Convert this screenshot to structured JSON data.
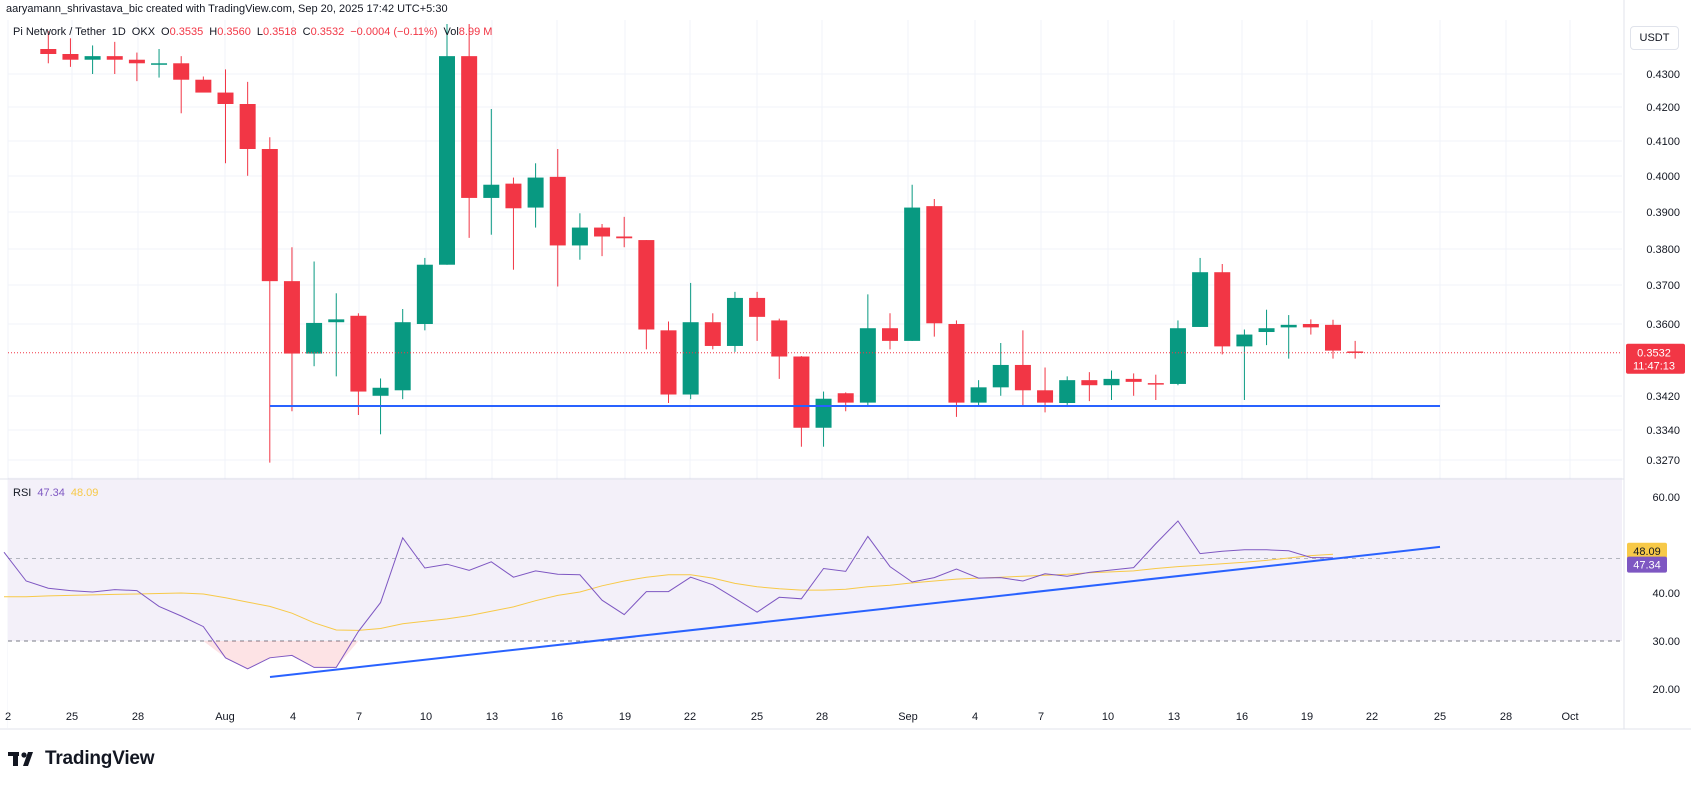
{
  "header": {
    "credit": "aaryamann_shrivastava_bic created with TradingView.com, Sep 20, 2025 17:42 UTC+5:30",
    "symbol": "Pi Network / Tether",
    "interval": "1D",
    "exchange": "OKX",
    "o_label": "O",
    "o": "0.3535",
    "h_label": "H",
    "h": "0.3560",
    "l_label": "L",
    "l": "0.3518",
    "c_label": "C",
    "c": "0.3532",
    "change": "−0.0004 (−0.11%)",
    "vol_label": "Vol",
    "vol": "8.99 M",
    "currency": "USDT"
  },
  "rsi_legend": {
    "name": "RSI",
    "rsi": "47.34",
    "ma": "48.09"
  },
  "brand": {
    "logo_text": "TradingView"
  },
  "colors": {
    "up": "#089981",
    "down": "#f23645",
    "rsi": "#7e57c2",
    "rsi_ma": "#f7c948",
    "trendline": "#2962ff",
    "price_line": "#f23645"
  },
  "chart_data": [
    {
      "type": "candlestick",
      "title": "",
      "y_ticks": [
        "0.4300",
        "0.4200",
        "0.4100",
        "0.4000",
        "0.3900",
        "0.3800",
        "0.3700",
        "0.3600",
        "0.3420",
        "0.3340",
        "0.3270"
      ],
      "x_ticks": [
        "2",
        "25",
        "28",
        "Aug",
        "4",
        "7",
        "10",
        "13",
        "16",
        "19",
        "22",
        "25",
        "28",
        "Sep",
        "4",
        "7",
        "10",
        "13",
        "16",
        "19",
        "22",
        "25",
        "28",
        "Oct"
      ],
      "last_price": "0.3532",
      "countdown": "11:47:13",
      "support_level": 0.3404,
      "candles": [
        {
          "o": 0.437,
          "h": 0.442,
          "l": 0.433,
          "c": 0.4356
        },
        {
          "o": 0.4356,
          "h": 0.44,
          "l": 0.432,
          "c": 0.434
        },
        {
          "o": 0.434,
          "h": 0.438,
          "l": 0.43,
          "c": 0.435
        },
        {
          "o": 0.435,
          "h": 0.439,
          "l": 0.43,
          "c": 0.434
        },
        {
          "o": 0.434,
          "h": 0.436,
          "l": 0.428,
          "c": 0.433
        },
        {
          "o": 0.433,
          "h": 0.437,
          "l": 0.429,
          "c": 0.433
        },
        {
          "o": 0.433,
          "h": 0.435,
          "l": 0.419,
          "c": 0.4284
        },
        {
          "o": 0.4284,
          "h": 0.4293,
          "l": 0.425,
          "c": 0.4248
        },
        {
          "o": 0.4248,
          "h": 0.4313,
          "l": 0.405,
          "c": 0.4216
        },
        {
          "o": 0.4216,
          "h": 0.4278,
          "l": 0.4015,
          "c": 0.409
        },
        {
          "o": 0.409,
          "h": 0.4123,
          "l": 0.3264,
          "c": 0.372
        },
        {
          "o": 0.372,
          "h": 0.3815,
          "l": 0.339,
          "c": 0.353
        },
        {
          "o": 0.353,
          "h": 0.3775,
          "l": 0.35,
          "c": 0.3603
        },
        {
          "o": 0.3605,
          "h": 0.3686,
          "l": 0.3476,
          "c": 0.3613
        },
        {
          "o": 0.3623,
          "h": 0.363,
          "l": 0.338,
          "c": 0.344
        },
        {
          "o": 0.343,
          "h": 0.3471,
          "l": 0.333,
          "c": 0.3449
        },
        {
          "o": 0.3443,
          "h": 0.3642,
          "l": 0.3422,
          "c": 0.3605
        },
        {
          "o": 0.36,
          "h": 0.3785,
          "l": 0.3585,
          "c": 0.3766
        },
        {
          "o": 0.3766,
          "h": 0.444,
          "l": 0.3766,
          "c": 0.435
        },
        {
          "o": 0.435,
          "h": 0.444,
          "l": 0.3841,
          "c": 0.3953
        },
        {
          "o": 0.3953,
          "h": 0.4202,
          "l": 0.385,
          "c": 0.399
        },
        {
          "o": 0.3993,
          "h": 0.401,
          "l": 0.3752,
          "c": 0.3924
        },
        {
          "o": 0.3926,
          "h": 0.405,
          "l": 0.387,
          "c": 0.401
        },
        {
          "o": 0.4012,
          "h": 0.409,
          "l": 0.3705,
          "c": 0.382
        },
        {
          "o": 0.382,
          "h": 0.391,
          "l": 0.378,
          "c": 0.387
        },
        {
          "o": 0.387,
          "h": 0.388,
          "l": 0.379,
          "c": 0.3845
        },
        {
          "o": 0.3845,
          "h": 0.39,
          "l": 0.3815,
          "c": 0.384
        },
        {
          "o": 0.3835,
          "h": 0.3835,
          "l": 0.354,
          "c": 0.3587
        },
        {
          "o": 0.3585,
          "h": 0.3607,
          "l": 0.3412,
          "c": 0.3433
        },
        {
          "o": 0.3433,
          "h": 0.3715,
          "l": 0.3422,
          "c": 0.3605
        },
        {
          "o": 0.3605,
          "h": 0.363,
          "l": 0.354,
          "c": 0.3548
        },
        {
          "o": 0.3548,
          "h": 0.369,
          "l": 0.3534,
          "c": 0.3673
        },
        {
          "o": 0.3673,
          "h": 0.369,
          "l": 0.356,
          "c": 0.362
        },
        {
          "o": 0.361,
          "h": 0.3615,
          "l": 0.347,
          "c": 0.3523
        },
        {
          "o": 0.3523,
          "h": 0.3524,
          "l": 0.3301,
          "c": 0.3346
        },
        {
          "o": 0.3346,
          "h": 0.344,
          "l": 0.3301,
          "c": 0.3423
        },
        {
          "o": 0.3436,
          "h": 0.3438,
          "l": 0.339,
          "c": 0.3413
        },
        {
          "o": 0.3413,
          "h": 0.3683,
          "l": 0.3404,
          "c": 0.359
        },
        {
          "o": 0.359,
          "h": 0.363,
          "l": 0.354,
          "c": 0.356
        },
        {
          "o": 0.356,
          "h": 0.399,
          "l": 0.356,
          "c": 0.3926
        },
        {
          "o": 0.393,
          "h": 0.395,
          "l": 0.357,
          "c": 0.3602
        },
        {
          "o": 0.36,
          "h": 0.361,
          "l": 0.3375,
          "c": 0.3413
        },
        {
          "o": 0.3413,
          "h": 0.3467,
          "l": 0.3406,
          "c": 0.345
        },
        {
          "o": 0.345,
          "h": 0.3555,
          "l": 0.343,
          "c": 0.3503
        },
        {
          "o": 0.3503,
          "h": 0.3585,
          "l": 0.3402,
          "c": 0.3443
        },
        {
          "o": 0.3443,
          "h": 0.3497,
          "l": 0.3387,
          "c": 0.3413
        },
        {
          "o": 0.3412,
          "h": 0.3476,
          "l": 0.3407,
          "c": 0.3467
        },
        {
          "o": 0.3467,
          "h": 0.3486,
          "l": 0.3417,
          "c": 0.3455
        },
        {
          "o": 0.3455,
          "h": 0.349,
          "l": 0.342,
          "c": 0.347
        },
        {
          "o": 0.347,
          "h": 0.3483,
          "l": 0.343,
          "c": 0.3463
        },
        {
          "o": 0.346,
          "h": 0.348,
          "l": 0.342,
          "c": 0.3458
        },
        {
          "o": 0.3458,
          "h": 0.361,
          "l": 0.3455,
          "c": 0.359
        },
        {
          "o": 0.3593,
          "h": 0.3785,
          "l": 0.3593,
          "c": 0.3745
        },
        {
          "o": 0.3745,
          "h": 0.3768,
          "l": 0.3528,
          "c": 0.3547
        },
        {
          "o": 0.3547,
          "h": 0.3587,
          "l": 0.342,
          "c": 0.3575
        },
        {
          "o": 0.3581,
          "h": 0.364,
          "l": 0.355,
          "c": 0.359
        },
        {
          "o": 0.3592,
          "h": 0.3625,
          "l": 0.3518,
          "c": 0.3598
        },
        {
          "o": 0.36,
          "h": 0.3613,
          "l": 0.3575,
          "c": 0.3592
        },
        {
          "o": 0.3598,
          "h": 0.3612,
          "l": 0.3518,
          "c": 0.3537
        },
        {
          "o": 0.3535,
          "h": 0.356,
          "l": 0.3518,
          "c": 0.3532
        }
      ]
    },
    {
      "type": "line",
      "title": "RSI",
      "y_ticks": [
        "60.00",
        "40.00",
        "30.00",
        "20.00"
      ],
      "ylim": [
        18,
        64
      ],
      "bands": [
        30,
        70
      ],
      "rsi_label": "47.34",
      "ma_label": "48.09",
      "series": [
        {
          "name": "47.34",
          "values": [
            48.5,
            42.5,
            41,
            40.5,
            40.2,
            40.7,
            40.5,
            37.2,
            35.2,
            33,
            26.5,
            24.2,
            26.5,
            27,
            24.5,
            24.5,
            32,
            38,
            51.5,
            45.2,
            46,
            44.7,
            46.5,
            43.3,
            44.6,
            43.9,
            43.8,
            38.5,
            35.5,
            40.3,
            40.3,
            43.3,
            41.7,
            38.9,
            36,
            39.1,
            38.8,
            45.1,
            44.5,
            51.8,
            45.5,
            42.3,
            43.2,
            45,
            43.1,
            43.2,
            42.5,
            44,
            43.5,
            44.3,
            44.8,
            45.3,
            50.3,
            55,
            48.2,
            48.7,
            49,
            49,
            48.8,
            47.4,
            47.34
          ]
        },
        {
          "name": "48.09",
          "values": [
            39.2,
            39.2,
            39.4,
            39.5,
            39.6,
            39.7,
            39.8,
            39.9,
            40,
            39.8,
            39,
            38.1,
            37.2,
            35.8,
            33.8,
            32.3,
            32.2,
            32.6,
            33.6,
            34.1,
            34.6,
            35.3,
            36.2,
            37.1,
            38.4,
            39.5,
            40.2,
            41.5,
            42.5,
            43.3,
            43.8,
            43.8,
            43.1,
            42,
            41.3,
            40.9,
            40.6,
            40.6,
            40.8,
            41.3,
            41.6,
            42.1,
            42.5,
            42.9,
            43.1,
            43.3,
            43.5,
            43.7,
            43.9,
            44.2,
            44.4,
            44.6,
            45.1,
            45.5,
            45.8,
            46.1,
            46.4,
            46.8,
            47.3,
            47.8,
            48.09
          ]
        }
      ]
    }
  ]
}
